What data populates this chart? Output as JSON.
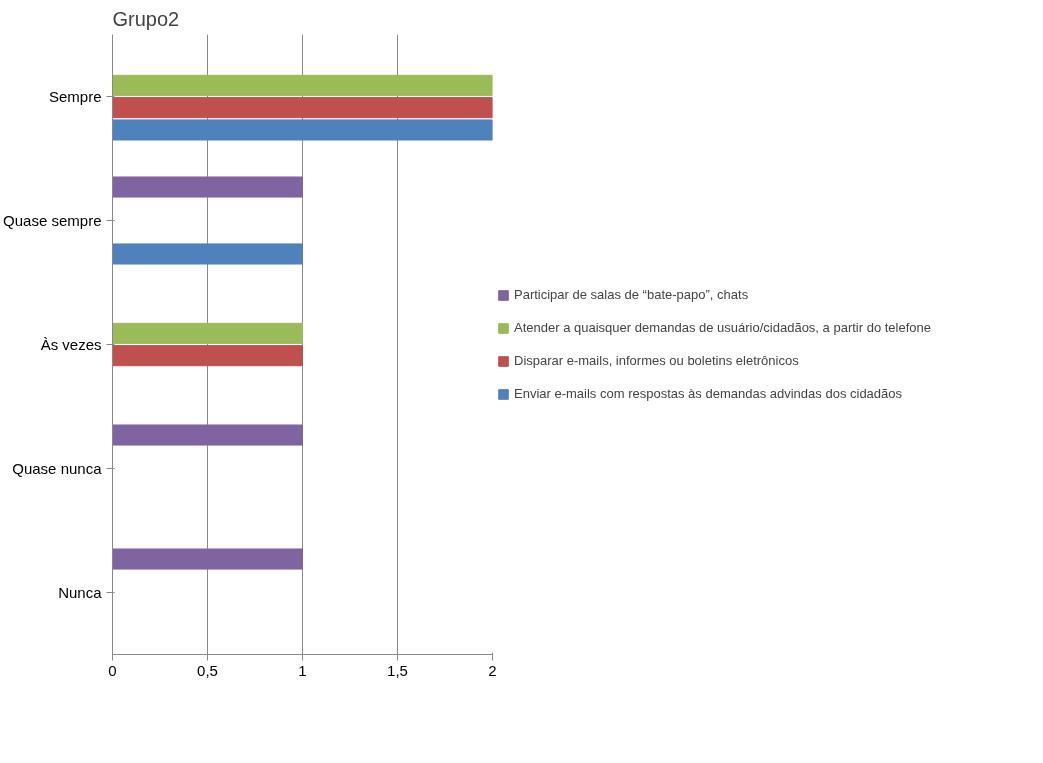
{
  "chart_data": {
    "type": "bar",
    "orientation": "horizontal",
    "title": "Grupo2",
    "categories": [
      "Sempre",
      "Quase sempre",
      "Às vezes",
      "Quase nunca",
      "Nunca"
    ],
    "series": [
      {
        "name": "Participar de salas de “bate-papo”, chats",
        "color": "#8064a2",
        "values": [
          0,
          1,
          0,
          1,
          1
        ]
      },
      {
        "name": "Atender a quaisquer demandas de usuário/cidadãos, a partir do telefone",
        "color": "#9bbb59",
        "values": [
          2,
          0,
          1,
          0,
          0
        ]
      },
      {
        "name": "Disparar e-mails, informes ou boletins eletrônicos",
        "color": "#c0504d",
        "values": [
          2,
          0,
          1,
          0,
          0
        ]
      },
      {
        "name": "Enviar e-mails com respostas às demandas advindas dos cidadãos",
        "color": "#4f81bd",
        "values": [
          2,
          1,
          0,
          0,
          0
        ]
      }
    ],
    "xlim": [
      0,
      2
    ],
    "xticks": [
      0,
      {
        "value": 0.5,
        "label": "0,5"
      },
      1,
      {
        "value": 1.5,
        "label": "1,5"
      },
      2
    ],
    "grid": "x",
    "legend": "right"
  }
}
